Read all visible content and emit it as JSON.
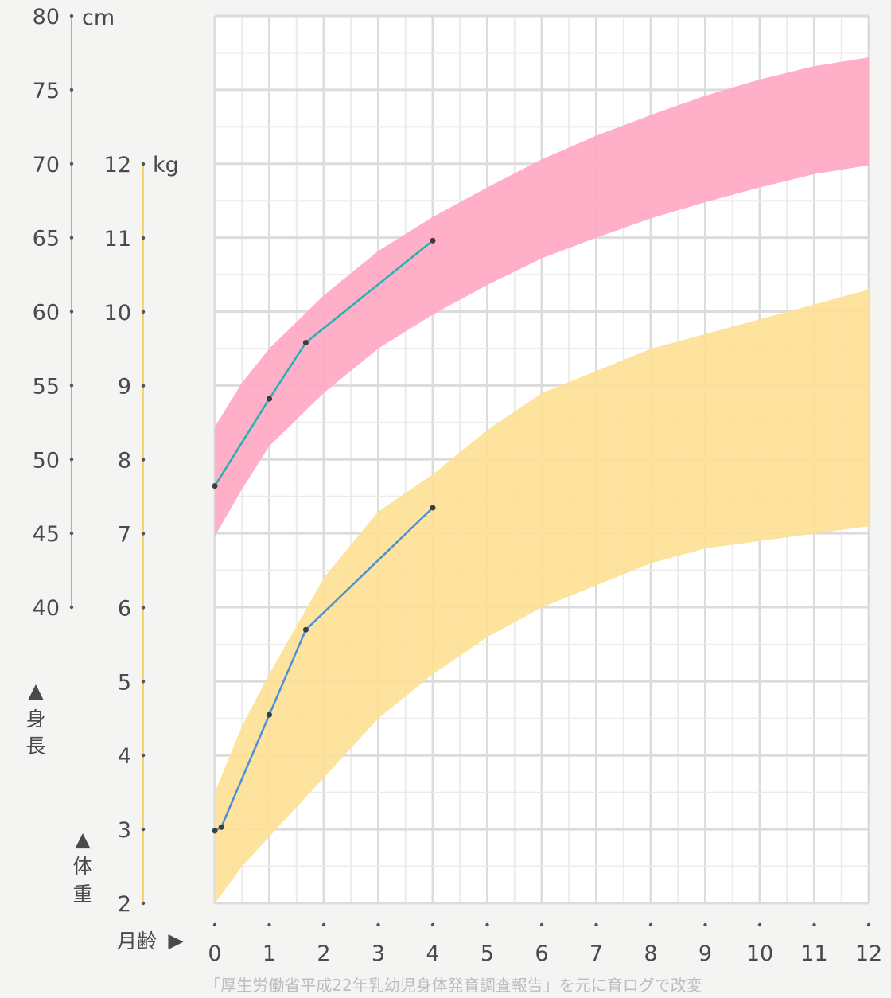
{
  "chart_data": {
    "type": "area",
    "x_axis": {
      "label": "月齢",
      "arrow": "▶",
      "ticks": [
        0,
        1,
        2,
        3,
        4,
        5,
        6,
        7,
        8,
        9,
        10,
        11,
        12
      ],
      "range": [
        0,
        12
      ]
    },
    "height_axis": {
      "unit": "cm",
      "label_chars": [
        "身",
        "長"
      ],
      "arrow": "▲",
      "ticks": [
        40,
        45,
        50,
        55,
        60,
        65,
        70,
        75,
        80
      ],
      "range": [
        40,
        80
      ],
      "color": "#f28db2"
    },
    "weight_axis": {
      "unit": "kg",
      "label_chars": [
        "体",
        "重"
      ],
      "arrow": "▲",
      "ticks": [
        2,
        3,
        4,
        5,
        6,
        7,
        8,
        9,
        10,
        11,
        12
      ],
      "range": [
        2,
        12
      ],
      "color": "#f5d46a"
    },
    "height_band": {
      "color": "#ffa8c2",
      "x": [
        0,
        0.5,
        1,
        2,
        3,
        4,
        5,
        6,
        7,
        8,
        9,
        10,
        11,
        12
      ],
      "lower": [
        44.8,
        48.0,
        50.9,
        54.5,
        57.5,
        59.8,
        61.8,
        63.6,
        65.0,
        66.3,
        67.4,
        68.4,
        69.3,
        69.9
      ],
      "upper": [
        52.2,
        55.2,
        57.5,
        61.1,
        64.1,
        66.4,
        68.4,
        70.3,
        71.9,
        73.3,
        74.6,
        75.7,
        76.6,
        77.2
      ]
    },
    "weight_band": {
      "color": "#fde094",
      "x": [
        0,
        0.5,
        1,
        2,
        3,
        4,
        5,
        6,
        7,
        8,
        9,
        10,
        11,
        12
      ],
      "lower": [
        2.0,
        2.5,
        2.9,
        3.7,
        4.5,
        5.1,
        5.6,
        6.0,
        6.3,
        6.6,
        6.8,
        6.9,
        7.0,
        7.1
      ],
      "upper": [
        3.5,
        4.4,
        5.1,
        6.4,
        7.3,
        7.8,
        8.4,
        8.9,
        9.2,
        9.5,
        9.7,
        9.9,
        10.1,
        10.3
      ]
    },
    "height_series": {
      "color": "#1fb3b4",
      "points": [
        [
          0,
          48.2
        ],
        [
          1,
          54.1
        ],
        [
          1.67,
          57.9
        ],
        [
          4,
          64.8
        ]
      ]
    },
    "weight_series": {
      "color": "#4a90d9",
      "points": [
        [
          0,
          2.98
        ],
        [
          0.12,
          3.03
        ],
        [
          1,
          4.55
        ],
        [
          1.67,
          5.7
        ],
        [
          4,
          7.35
        ]
      ]
    },
    "grid": true,
    "source_note": "「厚生労働省平成22年乳幼児身体発育調査報告」を元に育ログで改変"
  }
}
